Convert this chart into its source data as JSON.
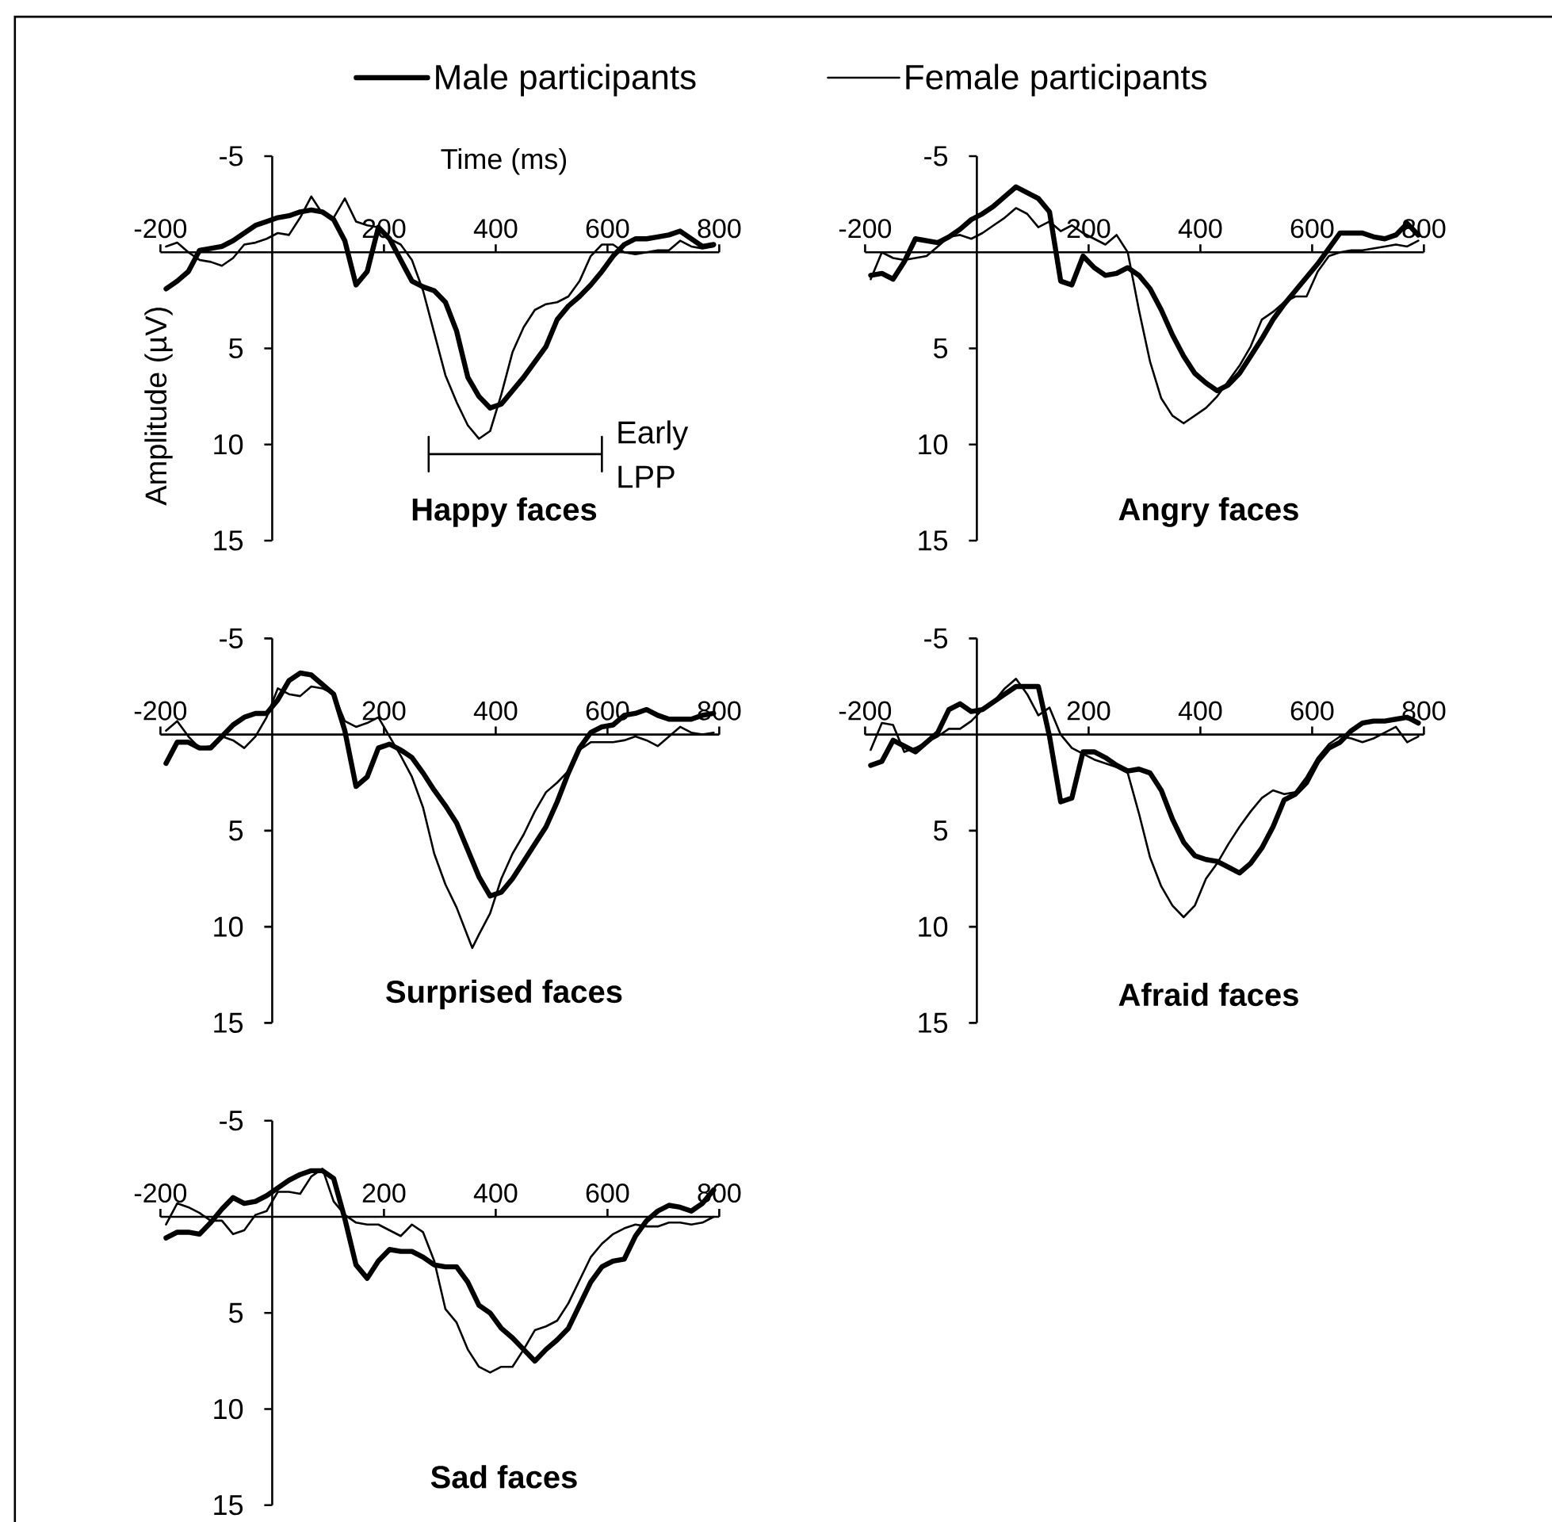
{
  "chart_data": [
    {
      "type": "line",
      "title": "Happy faces",
      "xlabel": "Time (ms)",
      "ylabel": "Amplitude (µV)",
      "legend": "top",
      "xlim": [
        -200,
        800
      ],
      "ylim": [
        15,
        -5
      ],
      "xticks": [
        -200,
        200,
        400,
        600,
        800
      ],
      "yticks": [
        -5,
        5,
        10,
        15
      ],
      "x": [
        -190,
        -170,
        -150,
        -130,
        -110,
        -90,
        -70,
        -50,
        -30,
        -10,
        10,
        30,
        50,
        70,
        90,
        110,
        130,
        150,
        170,
        190,
        210,
        230,
        250,
        270,
        290,
        310,
        330,
        350,
        370,
        390,
        410,
        430,
        450,
        470,
        490,
        510,
        530,
        550,
        570,
        590,
        610,
        630,
        650,
        670,
        690,
        710,
        730,
        750,
        770,
        790
      ],
      "annotations": [
        {
          "text": "Early LPP",
          "x": 590,
          "y": 10.5
        }
      ],
      "series": [
        {
          "name": "Male participants",
          "color": "#000000",
          "values": [
            1.9,
            1.5,
            1.0,
            -0.1,
            -0.2,
            -0.3,
            -0.6,
            -1.0,
            -1.4,
            -1.6,
            -1.8,
            -1.9,
            -2.1,
            -2.2,
            -2.1,
            -1.7,
            -0.6,
            1.7,
            1.0,
            -1.3,
            -0.7,
            0.4,
            1.5,
            1.8,
            2.0,
            2.6,
            4.1,
            6.5,
            7.5,
            8.1,
            7.9,
            7.2,
            6.5,
            5.7,
            4.9,
            3.5,
            2.8,
            2.3,
            1.7,
            1.0,
            0.2,
            -0.4,
            -0.7,
            -0.7,
            -0.8,
            -0.9,
            -1.1,
            -0.7,
            -0.3,
            -0.4
          ]
        },
        {
          "name": "Female participants",
          "color": "#000000",
          "values": [
            -0.3,
            -0.5,
            0.0,
            0.4,
            0.5,
            0.7,
            0.3,
            -0.4,
            -0.5,
            -0.7,
            -1.0,
            -0.9,
            -1.8,
            -2.9,
            -2.0,
            -1.8,
            -2.8,
            -1.6,
            -1.4,
            -1.3,
            -0.7,
            -0.4,
            0.4,
            2.0,
            4.2,
            6.4,
            7.8,
            9.0,
            9.7,
            9.3,
            7.4,
            5.2,
            3.9,
            3.0,
            2.7,
            2.6,
            2.3,
            1.5,
            0.2,
            -0.4,
            -0.4,
            0.0,
            0.1,
            0.0,
            -0.1,
            -0.1,
            -0.6,
            -0.3,
            -0.2,
            -0.3
          ]
        },
        {
          "type": "line",
          "color": "#000000",
          "x": [
            280,
            280,
            280,
            590,
            590,
            590
          ],
          "values": [
            9.6,
            11.4,
            10.5,
            10.5,
            9.6,
            11.4
          ]
        }
      ]
    },
    {
      "type": "line",
      "title": "Angry faces",
      "xlim": [
        -200,
        800
      ],
      "ylim": [
        15,
        -5
      ],
      "xticks": [
        -200,
        200,
        400,
        600,
        800
      ],
      "yticks": [
        -5,
        5,
        10,
        15
      ],
      "x": [
        -190,
        -170,
        -150,
        -130,
        -110,
        -90,
        -70,
        -50,
        -30,
        -10,
        10,
        30,
        50,
        70,
        90,
        110,
        130,
        150,
        170,
        190,
        210,
        230,
        250,
        270,
        290,
        310,
        330,
        350,
        370,
        390,
        410,
        430,
        450,
        470,
        490,
        510,
        530,
        550,
        570,
        590,
        610,
        630,
        650,
        670,
        690,
        710,
        730,
        750,
        770,
        790
      ],
      "series": [
        {
          "color": "#000000",
          "values": [
            1.2,
            1.1,
            1.4,
            0.5,
            -0.7,
            -0.6,
            -0.5,
            -0.8,
            -1.2,
            -1.7,
            -2.0,
            -2.4,
            -2.9,
            -3.4,
            -3.1,
            -2.8,
            -2.1,
            1.5,
            1.7,
            0.2,
            0.8,
            1.2,
            1.1,
            0.8,
            1.2,
            1.9,
            3.0,
            4.3,
            5.4,
            6.3,
            6.8,
            7.2,
            6.9,
            6.3,
            5.4,
            4.5,
            3.5,
            2.7,
            2.0,
            1.3,
            0.6,
            -0.2,
            -1.0,
            -1.0,
            -1.0,
            -0.8,
            -0.7,
            -0.9,
            -1.5,
            -0.9
          ]
        },
        {
          "color": "#000000",
          "values": [
            1.4,
            0.0,
            0.3,
            0.4,
            0.3,
            0.2,
            -0.3,
            -0.8,
            -0.9,
            -0.7,
            -1.0,
            -1.4,
            -1.8,
            -2.3,
            -2.0,
            -1.3,
            -1.6,
            -1.1,
            -1.4,
            -1.0,
            -0.7,
            -0.4,
            -0.9,
            0.0,
            3.0,
            5.7,
            7.6,
            8.5,
            8.9,
            8.5,
            8.1,
            7.5,
            6.7,
            5.9,
            4.9,
            3.5,
            3.1,
            2.6,
            2.3,
            2.3,
            1.0,
            0.2,
            0.0,
            -0.1,
            -0.1,
            -0.2,
            -0.3,
            -0.4,
            -0.3,
            -0.6
          ]
        }
      ]
    },
    {
      "type": "line",
      "title": "Surprised faces",
      "xlim": [
        -200,
        800
      ],
      "ylim": [
        15,
        -5
      ],
      "xticks": [
        -200,
        200,
        400,
        600,
        800
      ],
      "yticks": [
        -5,
        5,
        10,
        15
      ],
      "x": [
        -190,
        -170,
        -150,
        -130,
        -110,
        -90,
        -70,
        -50,
        -30,
        -10,
        10,
        30,
        50,
        70,
        90,
        110,
        130,
        150,
        170,
        190,
        210,
        230,
        250,
        270,
        290,
        310,
        330,
        350,
        370,
        390,
        410,
        430,
        450,
        470,
        490,
        510,
        530,
        550,
        570,
        590,
        610,
        630,
        650,
        670,
        690,
        710,
        730,
        750,
        770,
        790
      ],
      "series": [
        {
          "color": "#000000",
          "values": [
            1.5,
            0.4,
            0.4,
            0.7,
            0.7,
            0.1,
            -0.5,
            -0.9,
            -1.1,
            -1.1,
            -1.8,
            -2.8,
            -3.2,
            -3.1,
            -2.6,
            -2.1,
            -0.2,
            2.7,
            2.2,
            0.7,
            0.5,
            0.8,
            1.2,
            2.0,
            2.9,
            3.7,
            4.6,
            6.0,
            7.4,
            8.4,
            8.2,
            7.5,
            6.6,
            5.7,
            4.8,
            3.5,
            2.0,
            0.7,
            -0.1,
            -0.4,
            -0.5,
            -1.0,
            -1.1,
            -1.3,
            -1.0,
            -0.8,
            -0.8,
            -0.8,
            -1.0,
            -1.1
          ]
        },
        {
          "color": "#000000",
          "x": [
            -190,
            -170,
            -150,
            -130,
            -110,
            -90,
            -70,
            -50,
            -30,
            -10,
            10,
            30,
            50,
            70,
            90,
            110,
            130,
            150,
            170,
            190,
            210,
            230,
            250,
            270,
            290,
            310,
            330,
            350,
            358,
            370,
            390,
            410,
            430,
            450,
            470,
            490,
            510,
            530,
            550,
            570,
            590,
            610,
            630,
            650,
            670,
            690,
            710,
            730,
            750,
            770,
            790
          ],
          "values": [
            -0.2,
            -0.7,
            0.1,
            0.7,
            0.6,
            0.1,
            0.3,
            0.7,
            0.1,
            -0.9,
            -2.4,
            -2.1,
            -2.0,
            -2.5,
            -2.4,
            -2.1,
            -0.7,
            -0.4,
            -0.6,
            -0.9,
            0.1,
            1.1,
            2.2,
            3.8,
            6.2,
            7.8,
            9.0,
            10.5,
            11.1,
            10.4,
            9.3,
            7.5,
            6.2,
            5.2,
            4.0,
            3.0,
            2.5,
            1.9,
            0.8,
            0.4,
            0.4,
            0.4,
            0.3,
            0.1,
            0.3,
            0.6,
            0.1,
            -0.4,
            -0.1,
            0.0,
            -0.1
          ]
        }
      ]
    },
    {
      "type": "line",
      "title": "Afraid faces",
      "xlim": [
        -200,
        800
      ],
      "ylim": [
        15,
        -5
      ],
      "xticks": [
        -200,
        200,
        400,
        600,
        800
      ],
      "yticks": [
        -5,
        5,
        10,
        15
      ],
      "x": [
        -190,
        -170,
        -150,
        -130,
        -110,
        -90,
        -70,
        -50,
        -30,
        -10,
        10,
        30,
        50,
        70,
        90,
        110,
        130,
        150,
        170,
        190,
        210,
        230,
        250,
        270,
        290,
        310,
        330,
        350,
        370,
        390,
        410,
        430,
        450,
        470,
        490,
        510,
        530,
        550,
        570,
        590,
        610,
        630,
        650,
        670,
        690,
        710,
        730,
        750,
        770,
        790
      ],
      "series": [
        {
          "color": "#000000",
          "values": [
            1.6,
            1.4,
            0.3,
            0.6,
            0.9,
            0.4,
            -0.1,
            -1.3,
            -1.6,
            -1.2,
            -1.3,
            -1.7,
            -2.1,
            -2.5,
            -2.5,
            -2.5,
            0.1,
            3.5,
            3.3,
            0.9,
            0.9,
            1.2,
            1.6,
            1.9,
            1.8,
            2.0,
            2.9,
            4.4,
            5.6,
            6.3,
            6.5,
            6.6,
            6.9,
            7.2,
            6.7,
            5.9,
            4.8,
            3.4,
            3.1,
            2.5,
            1.4,
            0.7,
            0.4,
            -0.2,
            -0.6,
            -0.7,
            -0.7,
            -0.8,
            -0.9,
            -0.6
          ]
        },
        {
          "color": "#000000",
          "values": [
            0.8,
            -0.6,
            -0.5,
            0.9,
            0.7,
            0.4,
            0.1,
            -0.3,
            -0.3,
            -0.7,
            -1.3,
            -1.7,
            -2.4,
            -2.9,
            -2.1,
            -1.0,
            -1.4,
            0.0,
            0.7,
            1.0,
            1.3,
            1.5,
            1.7,
            2.0,
            4.1,
            6.4,
            7.9,
            8.9,
            9.5,
            8.9,
            7.5,
            6.7,
            5.7,
            4.8,
            4.0,
            3.3,
            2.9,
            3.1,
            3.0,
            2.2,
            1.2,
            0.5,
            0.1,
            0.2,
            0.4,
            0.2,
            -0.1,
            -0.4,
            0.4,
            0.1
          ]
        }
      ]
    },
    {
      "type": "line",
      "title": "Sad faces",
      "xlim": [
        -200,
        800
      ],
      "ylim": [
        15,
        -5
      ],
      "xticks": [
        -200,
        200,
        400,
        600,
        800
      ],
      "yticks": [
        -5,
        5,
        10,
        15
      ],
      "x": [
        -190,
        -170,
        -150,
        -130,
        -110,
        -90,
        -70,
        -50,
        -30,
        -10,
        10,
        30,
        50,
        70,
        90,
        110,
        130,
        150,
        170,
        190,
        210,
        230,
        250,
        270,
        290,
        310,
        330,
        350,
        370,
        390,
        410,
        430,
        450,
        470,
        490,
        510,
        530,
        550,
        570,
        590,
        610,
        630,
        650,
        670,
        690,
        710,
        730,
        750,
        770,
        790
      ],
      "series": [
        {
          "color": "#000000",
          "values": [
            1.1,
            0.8,
            0.8,
            0.9,
            0.3,
            -0.4,
            -1.0,
            -0.7,
            -0.8,
            -1.1,
            -1.5,
            -1.9,
            -2.2,
            -2.4,
            -2.4,
            -2.0,
            0.1,
            2.5,
            3.2,
            2.3,
            1.7,
            1.8,
            1.8,
            2.1,
            2.5,
            2.6,
            2.6,
            3.4,
            4.6,
            5.0,
            5.8,
            6.3,
            6.9,
            7.5,
            6.9,
            6.4,
            5.8,
            4.6,
            3.4,
            2.6,
            2.3,
            2.2,
            1.0,
            0.2,
            -0.3,
            -0.6,
            -0.5,
            -0.3,
            -0.7,
            -1.4
          ]
        },
        {
          "color": "#000000",
          "values": [
            0.4,
            -0.7,
            -0.5,
            -0.2,
            0.2,
            0.2,
            0.9,
            0.7,
            -0.1,
            -0.3,
            -1.3,
            -1.3,
            -1.2,
            -2.1,
            -2.5,
            -0.8,
            -0.1,
            0.3,
            0.4,
            0.4,
            0.7,
            1.0,
            0.4,
            0.8,
            2.3,
            4.8,
            5.5,
            6.9,
            7.8,
            8.1,
            7.8,
            7.8,
            6.9,
            5.9,
            5.7,
            5.4,
            4.5,
            3.3,
            2.1,
            1.4,
            0.9,
            0.6,
            0.4,
            0.5,
            0.5,
            0.3,
            0.3,
            0.4,
            0.3,
            0.0
          ]
        }
      ]
    }
  ]
}
